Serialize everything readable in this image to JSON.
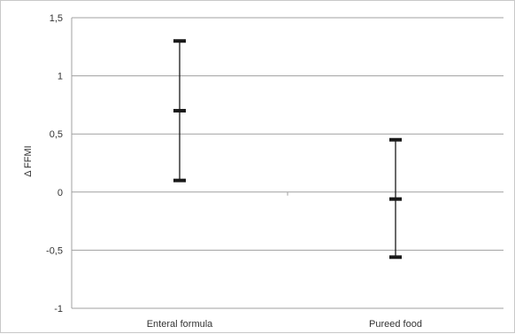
{
  "chart_data": {
    "type": "errorbar",
    "categories": [
      "Enteral formula",
      "Pureed food"
    ],
    "series": [
      {
        "mean": [
          0.7,
          -0.06
        ],
        "upper": [
          1.3,
          0.45
        ],
        "lower": [
          0.1,
          -0.56
        ]
      }
    ],
    "ylabel": "Δ FFMI",
    "xlabel": "",
    "title": "",
    "ylim": [
      -1,
      1.5
    ],
    "yticks": [
      -1,
      -0.5,
      0,
      0.5,
      1,
      1.5
    ],
    "ytick_labels": [
      "-1",
      "-0,5",
      "0",
      "0,5",
      "1",
      "1,5"
    ],
    "grid": true,
    "colors": {
      "grid": "#a0a0a0",
      "marker": "#1a1a1a",
      "text": "#333333"
    }
  }
}
